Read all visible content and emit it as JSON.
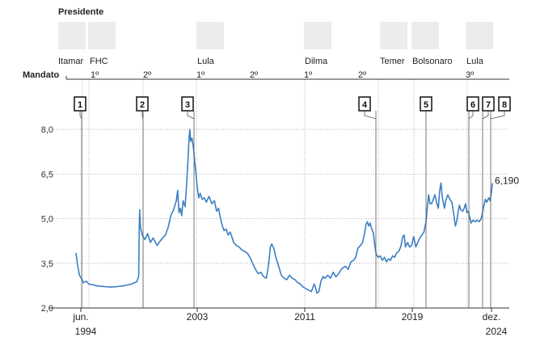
{
  "header": {
    "title": "Presidente",
    "mandato_label": "Mandato"
  },
  "presidents": [
    {
      "name": "Itamar",
      "icon": "person-photo-icon"
    },
    {
      "name": "FHC",
      "icon": "person-photo-icon"
    },
    {
      "name": "Lula",
      "icon": "person-photo-icon"
    },
    {
      "name": "Dilma",
      "icon": "person-photo-icon"
    },
    {
      "name": "Temer",
      "icon": "person-photo-icon"
    },
    {
      "name": "Bolsonaro",
      "icon": "person-photo-icon"
    },
    {
      "name": "Lula",
      "icon": "person-photo-icon"
    }
  ],
  "terms": [
    "1º",
    "2º",
    "1º",
    "2º",
    "1º",
    "2º",
    "3º"
  ],
  "chart_data": {
    "type": "line",
    "title": "",
    "xlabel": "",
    "ylabel": "",
    "ylim": [
      2.0,
      8.0
    ],
    "y_ticks": [
      "2,0",
      "3,5",
      "5,0",
      "6,5",
      "8,0"
    ],
    "x_ticks": [
      {
        "line1": "jun.",
        "line2": "1994"
      },
      {
        "line1": "2003",
        "line2": ""
      },
      {
        "line1": "2011",
        "line2": ""
      },
      {
        "line1": "2019",
        "line2": ""
      },
      {
        "line1": "dez.",
        "line2": "2024"
      }
    ],
    "grid": "horizontal dotted",
    "markers": [
      "1",
      "2",
      "3",
      "4",
      "5",
      "6",
      "7",
      "8"
    ],
    "end_label": "6,190",
    "line_color": "#3b7fc4",
    "series": [
      {
        "values": [
          [
            1994.45,
            3.85
          ],
          [
            1994.55,
            3.5
          ],
          [
            1994.7,
            3.1
          ],
          [
            1994.9,
            2.95
          ],
          [
            1995.0,
            2.85
          ],
          [
            1995.2,
            2.9
          ],
          [
            1995.4,
            2.8
          ],
          [
            1995.7,
            2.78
          ],
          [
            1996.0,
            2.74
          ],
          [
            1996.5,
            2.72
          ],
          [
            1997.0,
            2.7
          ],
          [
            1997.5,
            2.72
          ],
          [
            1998.0,
            2.75
          ],
          [
            1998.5,
            2.8
          ],
          [
            1998.9,
            2.88
          ],
          [
            1999.0,
            3.0
          ],
          [
            1999.05,
            3.1
          ],
          [
            1999.08,
            4.6
          ],
          [
            1999.12,
            5.3
          ],
          [
            1999.18,
            4.7
          ],
          [
            1999.3,
            4.45
          ],
          [
            1999.5,
            4.3
          ],
          [
            1999.7,
            4.5
          ],
          [
            1999.9,
            4.2
          ],
          [
            2000.1,
            4.35
          ],
          [
            2000.4,
            4.1
          ],
          [
            2000.7,
            4.3
          ],
          [
            2001.0,
            4.45
          ],
          [
            2001.2,
            4.7
          ],
          [
            2001.4,
            5.1
          ],
          [
            2001.6,
            5.3
          ],
          [
            2001.8,
            5.6
          ],
          [
            2001.9,
            5.95
          ],
          [
            2002.0,
            5.2
          ],
          [
            2002.1,
            5.35
          ],
          [
            2002.2,
            5.1
          ],
          [
            2002.3,
            5.6
          ],
          [
            2002.45,
            5.4
          ],
          [
            2002.55,
            6.1
          ],
          [
            2002.65,
            6.9
          ],
          [
            2002.75,
            7.8
          ],
          [
            2002.8,
            8.0
          ],
          [
            2002.85,
            7.6
          ],
          [
            2002.95,
            7.7
          ],
          [
            2003.05,
            7.4
          ],
          [
            2003.15,
            6.9
          ],
          [
            2003.25,
            6.5
          ],
          [
            2003.35,
            6.0
          ],
          [
            2003.45,
            5.7
          ],
          [
            2003.55,
            5.85
          ],
          [
            2003.7,
            5.65
          ],
          [
            2003.85,
            5.7
          ],
          [
            2004.0,
            5.55
          ],
          [
            2004.2,
            5.75
          ],
          [
            2004.4,
            5.5
          ],
          [
            2004.6,
            5.6
          ],
          [
            2004.75,
            5.25
          ],
          [
            2004.9,
            5.35
          ],
          [
            2005.0,
            5.1
          ],
          [
            2005.15,
            4.8
          ],
          [
            2005.3,
            4.6
          ],
          [
            2005.45,
            4.65
          ],
          [
            2005.6,
            4.45
          ],
          [
            2005.75,
            4.55
          ],
          [
            2005.9,
            4.35
          ],
          [
            2006.0,
            4.2
          ],
          [
            2006.2,
            4.1
          ],
          [
            2006.4,
            4.05
          ],
          [
            2006.6,
            3.95
          ],
          [
            2006.8,
            3.9
          ],
          [
            2007.0,
            3.85
          ],
          [
            2007.2,
            3.7
          ],
          [
            2007.4,
            3.5
          ],
          [
            2007.6,
            3.3
          ],
          [
            2007.8,
            3.15
          ],
          [
            2008.0,
            3.2
          ],
          [
            2008.2,
            3.05
          ],
          [
            2008.4,
            3.0
          ],
          [
            2008.55,
            3.4
          ],
          [
            2008.7,
            4.05
          ],
          [
            2008.8,
            4.15
          ],
          [
            2008.95,
            4.0
          ],
          [
            2009.1,
            3.7
          ],
          [
            2009.3,
            3.4
          ],
          [
            2009.5,
            3.1
          ],
          [
            2009.7,
            3.0
          ],
          [
            2009.9,
            2.95
          ],
          [
            2010.1,
            3.1
          ],
          [
            2010.3,
            3.0
          ],
          [
            2010.5,
            2.95
          ],
          [
            2010.7,
            2.85
          ],
          [
            2010.9,
            2.8
          ],
          [
            2011.1,
            2.7
          ],
          [
            2011.3,
            2.65
          ],
          [
            2011.5,
            2.6
          ],
          [
            2011.7,
            2.55
          ],
          [
            2011.9,
            2.8
          ],
          [
            2012.0,
            2.7
          ],
          [
            2012.1,
            2.5
          ],
          [
            2012.25,
            2.55
          ],
          [
            2012.4,
            2.9
          ],
          [
            2012.55,
            3.05
          ],
          [
            2012.7,
            3.0
          ],
          [
            2012.9,
            3.1
          ],
          [
            2013.1,
            3.0
          ],
          [
            2013.3,
            3.2
          ],
          [
            2013.5,
            3.05
          ],
          [
            2013.7,
            3.15
          ],
          [
            2013.9,
            3.3
          ],
          [
            2014.0,
            3.35
          ],
          [
            2014.2,
            3.4
          ],
          [
            2014.4,
            3.3
          ],
          [
            2014.6,
            3.55
          ],
          [
            2014.8,
            3.6
          ],
          [
            2014.95,
            3.7
          ],
          [
            2015.1,
            4.0
          ],
          [
            2015.3,
            4.1
          ],
          [
            2015.45,
            4.2
          ],
          [
            2015.6,
            4.5
          ],
          [
            2015.7,
            4.8
          ],
          [
            2015.8,
            4.9
          ],
          [
            2015.9,
            4.75
          ],
          [
            2016.0,
            4.85
          ],
          [
            2016.1,
            4.7
          ],
          [
            2016.25,
            4.5
          ],
          [
            2016.35,
            4.1
          ],
          [
            2016.45,
            3.8
          ],
          [
            2016.6,
            3.7
          ],
          [
            2016.75,
            3.75
          ],
          [
            2016.9,
            3.6
          ],
          [
            2017.05,
            3.7
          ],
          [
            2017.2,
            3.55
          ],
          [
            2017.35,
            3.65
          ],
          [
            2017.5,
            3.6
          ],
          [
            2017.65,
            3.75
          ],
          [
            2017.8,
            3.7
          ],
          [
            2017.95,
            3.85
          ],
          [
            2018.1,
            3.9
          ],
          [
            2018.25,
            4.05
          ],
          [
            2018.4,
            4.4
          ],
          [
            2018.5,
            4.45
          ],
          [
            2018.6,
            4.05
          ],
          [
            2018.75,
            4.2
          ],
          [
            2018.9,
            4.05
          ],
          [
            2019.05,
            4.1
          ],
          [
            2019.2,
            4.4
          ],
          [
            2019.35,
            4.05
          ],
          [
            2019.5,
            4.2
          ],
          [
            2019.65,
            4.35
          ],
          [
            2019.8,
            4.45
          ],
          [
            2019.95,
            4.55
          ],
          [
            2020.1,
            4.9
          ],
          [
            2020.2,
            5.4
          ],
          [
            2020.3,
            5.8
          ],
          [
            2020.4,
            5.5
          ],
          [
            2020.5,
            5.5
          ],
          [
            2020.6,
            5.6
          ],
          [
            2020.75,
            5.8
          ],
          [
            2020.9,
            5.5
          ],
          [
            2021.0,
            5.35
          ],
          [
            2021.1,
            5.9
          ],
          [
            2021.2,
            6.2
          ],
          [
            2021.3,
            5.7
          ],
          [
            2021.45,
            5.35
          ],
          [
            2021.55,
            5.6
          ],
          [
            2021.7,
            5.8
          ],
          [
            2021.85,
            5.65
          ],
          [
            2022.0,
            5.55
          ],
          [
            2022.15,
            5.1
          ],
          [
            2022.25,
            4.75
          ],
          [
            2022.35,
            4.9
          ],
          [
            2022.45,
            5.2
          ],
          [
            2022.55,
            5.45
          ],
          [
            2022.65,
            5.3
          ],
          [
            2022.8,
            5.25
          ],
          [
            2022.9,
            5.35
          ],
          [
            2023.0,
            5.5
          ],
          [
            2023.1,
            5.2
          ],
          [
            2023.2,
            5.25
          ],
          [
            2023.3,
            5.05
          ],
          [
            2023.4,
            4.85
          ],
          [
            2023.55,
            4.95
          ],
          [
            2023.7,
            4.9
          ],
          [
            2023.85,
            4.95
          ],
          [
            2024.0,
            4.9
          ],
          [
            2024.15,
            5.0
          ],
          [
            2024.3,
            5.35
          ],
          [
            2024.45,
            5.65
          ],
          [
            2024.55,
            5.55
          ],
          [
            2024.7,
            5.7
          ],
          [
            2024.8,
            5.6
          ],
          [
            2024.9,
            5.9
          ],
          [
            2024.96,
            6.19
          ]
        ]
      }
    ]
  }
}
